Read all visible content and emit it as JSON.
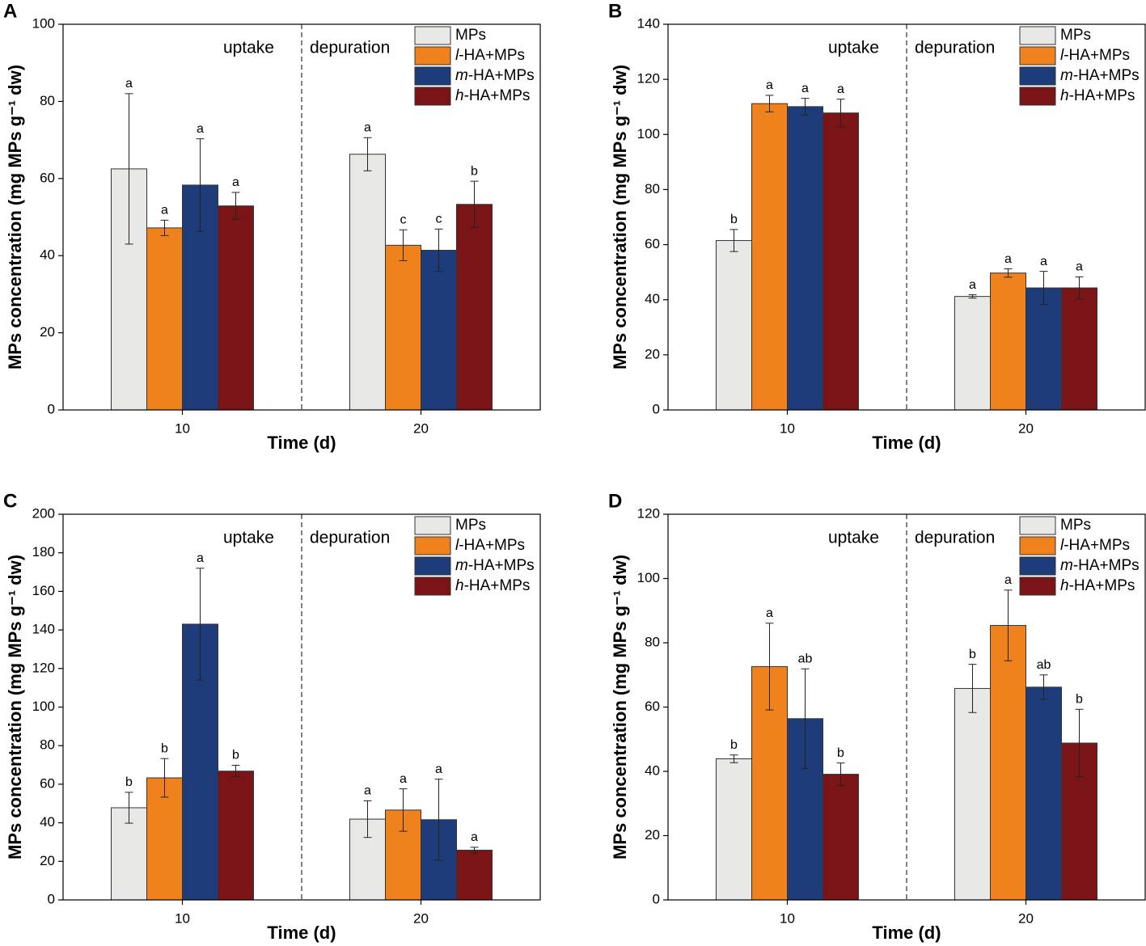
{
  "chart_data": [
    {
      "type": "bar",
      "panel": "A",
      "ylabel": "MPs concentration (mg MPs g⁻¹ dw)",
      "xlabel": "Time (d)",
      "categories": [
        "10",
        "20"
      ],
      "annotations": [
        "uptake",
        "depuration"
      ],
      "legend": "upper right",
      "ylim": [
        0,
        100
      ],
      "yticks": [
        0,
        20,
        40,
        60,
        80,
        100
      ],
      "series": [
        {
          "name": "MPs",
          "color": "#e8e9e7",
          "values": [
            62.5,
            66.3
          ],
          "errors": [
            19.5,
            4.3
          ],
          "letters": [
            "a",
            "a"
          ]
        },
        {
          "name": "l-HA+MPs",
          "color": "#f0821e",
          "values": [
            47.2,
            42.7
          ],
          "errors": [
            2.0,
            4.0
          ],
          "letters": [
            "a",
            "c"
          ]
        },
        {
          "name": "m-HA+MPs",
          "color": "#1f3c7a",
          "values": [
            58.3,
            41.4
          ],
          "errors": [
            12.0,
            5.5
          ],
          "letters": [
            "a",
            "c"
          ]
        },
        {
          "name": "h-HA+MPs",
          "color": "#7a1416",
          "values": [
            52.9,
            53.3
          ],
          "errors": [
            3.5,
            6.0
          ],
          "letters": [
            "a",
            "b"
          ]
        }
      ]
    },
    {
      "type": "bar",
      "panel": "B",
      "ylabel": "MPs concentration (mg MPs g⁻¹ dw)",
      "xlabel": "Time (d)",
      "categories": [
        "10",
        "20"
      ],
      "annotations": [
        "uptake",
        "depuration"
      ],
      "legend": "upper right",
      "ylim": [
        0,
        140
      ],
      "yticks": [
        0,
        20,
        40,
        60,
        80,
        100,
        120,
        140
      ],
      "series": [
        {
          "name": "MPs",
          "color": "#e8e9e7",
          "values": [
            61.5,
            41.2
          ],
          "errors": [
            4.0,
            0.6
          ],
          "letters": [
            "b",
            "a"
          ]
        },
        {
          "name": "l-HA+MPs",
          "color": "#f0821e",
          "values": [
            111.2,
            49.7
          ],
          "errors": [
            3.0,
            1.5
          ],
          "letters": [
            "a",
            "a"
          ]
        },
        {
          "name": "m-HA+MPs",
          "color": "#1f3c7a",
          "values": [
            110.1,
            44.3
          ],
          "errors": [
            3.0,
            6.0
          ],
          "letters": [
            "a",
            "a"
          ]
        },
        {
          "name": "h-HA+MPs",
          "color": "#7a1416",
          "values": [
            107.8,
            44.3
          ],
          "errors": [
            5.0,
            4.0
          ],
          "letters": [
            "a",
            "a"
          ]
        }
      ]
    },
    {
      "type": "bar",
      "panel": "C",
      "ylabel": "MPs concentration (mg MPs g⁻¹ dw)",
      "xlabel": "Time (d)",
      "categories": [
        "10",
        "20"
      ],
      "annotations": [
        "uptake",
        "depuration"
      ],
      "legend": "upper right",
      "ylim": [
        0,
        200
      ],
      "yticks": [
        0,
        20,
        40,
        60,
        80,
        100,
        120,
        140,
        160,
        180,
        200
      ],
      "series": [
        {
          "name": "MPs",
          "color": "#e8e9e7",
          "values": [
            47.8,
            41.9
          ],
          "errors": [
            8.0,
            9.5
          ],
          "letters": [
            "b",
            "a"
          ]
        },
        {
          "name": "l-HA+MPs",
          "color": "#f0821e",
          "values": [
            63.3,
            46.6
          ],
          "errors": [
            10.0,
            11.0
          ],
          "letters": [
            "b",
            "a"
          ]
        },
        {
          "name": "m-HA+MPs",
          "color": "#1f3c7a",
          "values": [
            143.0,
            41.6
          ],
          "errors": [
            29.0,
            21.0
          ],
          "letters": [
            "a",
            "a"
          ]
        },
        {
          "name": "h-HA+MPs",
          "color": "#7a1416",
          "values": [
            66.8,
            25.8
          ],
          "errors": [
            3.0,
            1.5
          ],
          "letters": [
            "b",
            "a"
          ]
        }
      ]
    },
    {
      "type": "bar",
      "panel": "D",
      "ylabel": "MPs concentration (mg MPs g⁻¹ dw)",
      "xlabel": "Time (d)",
      "categories": [
        "10",
        "20"
      ],
      "annotations": [
        "uptake",
        "depuration"
      ],
      "legend": "upper right",
      "ylim": [
        0,
        120
      ],
      "yticks": [
        0,
        20,
        40,
        60,
        80,
        100,
        120
      ],
      "series": [
        {
          "name": "MPs",
          "color": "#e8e9e7",
          "values": [
            43.9,
            65.8
          ],
          "errors": [
            1.2,
            7.5
          ],
          "letters": [
            "b",
            "b"
          ]
        },
        {
          "name": "l-HA+MPs",
          "color": "#f0821e",
          "values": [
            72.6,
            85.4
          ],
          "errors": [
            13.5,
            11.0
          ],
          "letters": [
            "a",
            "a"
          ]
        },
        {
          "name": "m-HA+MPs",
          "color": "#1f3c7a",
          "values": [
            56.4,
            66.2
          ],
          "errors": [
            15.5,
            3.8
          ],
          "letters": [
            "ab",
            "ab"
          ]
        },
        {
          "name": "h-HA+MPs",
          "color": "#7a1416",
          "values": [
            39.1,
            48.8
          ],
          "errors": [
            3.5,
            10.5
          ],
          "letters": [
            "b",
            "b"
          ]
        }
      ]
    }
  ]
}
